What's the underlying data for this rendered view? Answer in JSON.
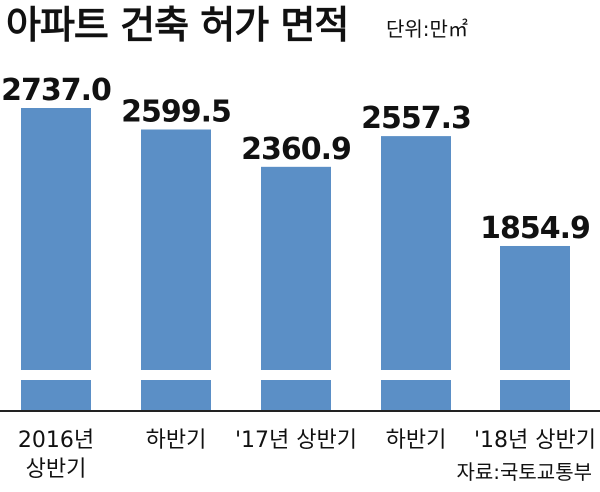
{
  "chart_data": {
    "type": "bar",
    "title": "아파트 건축 허가 면적",
    "unit_label": "단위:만㎡",
    "source": "자료:국토교통부",
    "xlabel": "",
    "ylabel": "",
    "axis_break": true,
    "categories": [
      [
        "2016년",
        "상반기"
      ],
      [
        "하반기"
      ],
      [
        "'17년 상반기"
      ],
      [
        "하반기"
      ],
      [
        "'18년 상반기"
      ]
    ],
    "values": [
      2737.0,
      2599.5,
      2360.9,
      2557.3,
      1854.9
    ],
    "value_labels": [
      "2737.0",
      "2599.5",
      "2360.9",
      "2557.3",
      "1854.9"
    ],
    "ylim": [
      0,
      2737.0
    ],
    "colors": {
      "bar": "#5b8fc6",
      "axis": "#222222",
      "text": "#111111",
      "break": "#ffffff"
    }
  }
}
